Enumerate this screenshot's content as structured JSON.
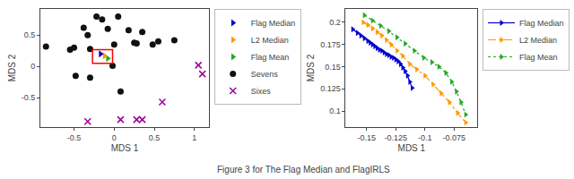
{
  "chart_data": [
    {
      "type": "scatter",
      "x_label": "MDS 1",
      "y_label": "MDS 2",
      "xlim": [
        -0.92,
        1.18
      ],
      "ylim": [
        -0.97,
        0.92
      ],
      "xticks": [
        -0.5,
        0,
        0.5,
        1
      ],
      "yticks": [
        -0.5,
        0,
        0.5
      ],
      "grid": false,
      "legend": "upper right",
      "series": [
        {
          "name": "Flag Median",
          "color": "#0000cc",
          "marker": "triangle-right",
          "x": [
            -0.17
          ],
          "values": [
            0.2
          ]
        },
        {
          "name": "L2 Median",
          "color": "#ff9900",
          "marker": "triangle-right",
          "x": [
            -0.12
          ],
          "values": [
            0.17
          ]
        },
        {
          "name": "Flag Mean",
          "color": "#22aa22",
          "marker": "triangle-right",
          "x": [
            -0.08
          ],
          "values": [
            0.13
          ]
        },
        {
          "name": "Sevens",
          "color": "#111111",
          "marker": "circle",
          "x": [
            -0.85,
            -0.55,
            -0.5,
            -0.48,
            -0.38,
            -0.33,
            -0.3,
            -0.3,
            -0.22,
            -0.15,
            -0.08,
            0.0,
            -0.02,
            0.05,
            0.08,
            0.18,
            0.25,
            0.28,
            0.35,
            0.48,
            0.55,
            0.75
          ],
          "values": [
            0.32,
            0.27,
            0.3,
            -0.15,
            0.62,
            0.5,
            0.28,
            -0.18,
            0.8,
            0.75,
            0.6,
            0.35,
            0.01,
            0.8,
            -0.4,
            0.58,
            0.38,
            0.37,
            0.55,
            0.35,
            0.4,
            0.42
          ]
        },
        {
          "name": "Sixes",
          "color": "#990099",
          "marker": "x",
          "x": [
            -0.33,
            0.08,
            0.28,
            0.35,
            0.6,
            1.05,
            1.1
          ],
          "values": [
            -0.88,
            -0.85,
            -0.85,
            -0.85,
            -0.57,
            0.02,
            -0.12
          ]
        }
      ],
      "rectangle": {
        "x": -0.27,
        "y": 0.05,
        "width": 0.25,
        "height": 0.22,
        "color": "red"
      }
    },
    {
      "type": "line",
      "x_label": "MDS 1",
      "y_label": "MDS 2",
      "xlim": [
        -0.168,
        -0.055
      ],
      "ylim": [
        0.082,
        0.215
      ],
      "xticks": [
        -0.15,
        -0.125,
        -0.1,
        -0.075
      ],
      "yticks": [
        0.1,
        0.125,
        0.15,
        0.175,
        0.2
      ],
      "grid": false,
      "legend": "upper right",
      "series": [
        {
          "name": "Flag Median",
          "color": "#0000cc",
          "marker": "triangle-right",
          "line_style": "solid",
          "x": [
            -0.162,
            -0.158,
            -0.155,
            -0.152,
            -0.149,
            -0.147,
            -0.145,
            -0.143,
            -0.141,
            -0.139,
            -0.137,
            -0.135,
            -0.133,
            -0.131,
            -0.129,
            -0.127,
            -0.125,
            -0.123,
            -0.121,
            -0.119,
            -0.117,
            -0.115,
            -0.113,
            -0.111
          ],
          "values": [
            0.192,
            0.188,
            0.185,
            0.182,
            0.179,
            0.177,
            0.175,
            0.173,
            0.171,
            0.169,
            0.168,
            0.166,
            0.164,
            0.163,
            0.161,
            0.16,
            0.158,
            0.156,
            0.153,
            0.149,
            0.145,
            0.14,
            0.133,
            0.126
          ]
        },
        {
          "name": "L2 Median",
          "color": "#ff9900",
          "marker": "triangle-right",
          "line_style": "dashdot",
          "x": [
            -0.153,
            -0.149,
            -0.145,
            -0.141,
            -0.137,
            -0.133,
            -0.129,
            -0.124,
            -0.119,
            -0.113,
            -0.107,
            -0.1,
            -0.093,
            -0.086,
            -0.079,
            -0.072,
            -0.065
          ],
          "values": [
            0.2,
            0.197,
            0.193,
            0.189,
            0.185,
            0.18,
            0.175,
            0.168,
            0.162,
            0.153,
            0.147,
            0.14,
            0.13,
            0.12,
            0.11,
            0.098,
            0.087
          ]
        },
        {
          "name": "Flag Mean",
          "color": "#22aa22",
          "marker": "triangle-right",
          "line_style": "dotted",
          "x": [
            -0.152,
            -0.145,
            -0.138,
            -0.131,
            -0.124,
            -0.117,
            -0.109,
            -0.101,
            -0.094,
            -0.088,
            -0.082,
            -0.077,
            -0.073,
            -0.069,
            -0.065
          ],
          "values": [
            0.208,
            0.202,
            0.196,
            0.19,
            0.183,
            0.176,
            0.168,
            0.16,
            0.155,
            0.15,
            0.143,
            0.133,
            0.122,
            0.11,
            0.096
          ]
        }
      ]
    }
  ],
  "caption": "Figure 3 for The Flag Median and FlagIRLS"
}
